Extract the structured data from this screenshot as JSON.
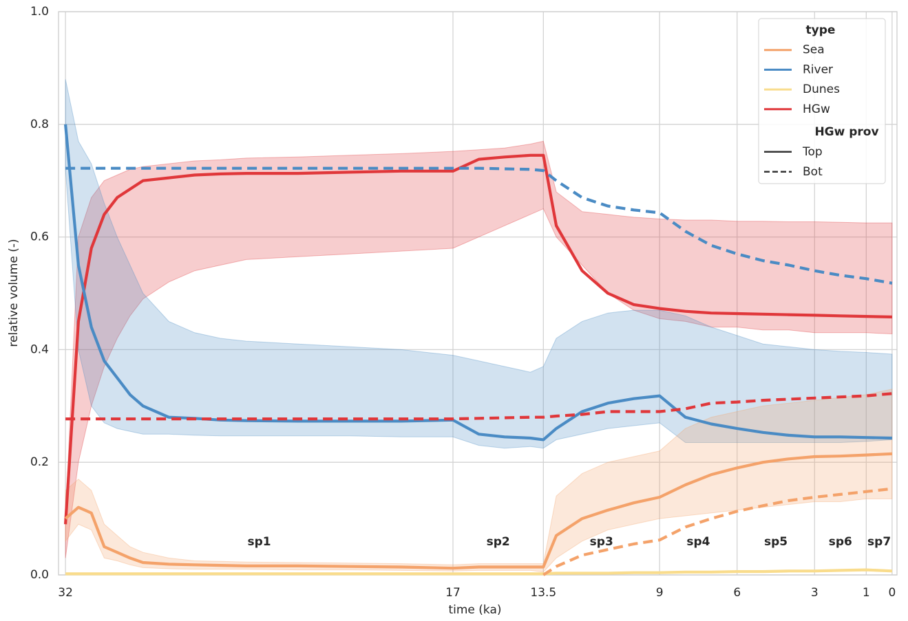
{
  "chart_data": {
    "type": "line",
    "xlabel": "time (ka)",
    "ylabel": "relative volume (-)",
    "xlim": [
      32.27,
      -0.19
    ],
    "ylim": [
      0,
      1
    ],
    "xticks": [
      32,
      17,
      13.5,
      9,
      6,
      3,
      1,
      0
    ],
    "yticks": [
      {
        "value": 0,
        "label": "0.0"
      },
      0.2,
      0.4,
      0.6,
      0.8,
      {
        "value": 1,
        "label": "1.0"
      }
    ],
    "grid": true,
    "x": [
      32,
      31.5,
      31,
      30.5,
      30,
      29.5,
      29,
      28,
      27,
      26,
      25,
      23,
      21,
      19,
      17,
      16,
      15,
      14,
      13.5,
      13,
      12,
      11,
      10,
      9,
      8,
      7,
      6,
      5,
      4,
      3,
      2,
      1,
      0
    ],
    "series": [
      {
        "type": "HGw",
        "prov": "Top",
        "color": "#e0373a",
        "values": [
          0.09,
          0.45,
          0.58,
          0.64,
          0.67,
          0.685,
          0.7,
          0.705,
          0.71,
          0.712,
          0.713,
          0.713,
          0.715,
          0.717,
          0.717,
          0.738,
          0.742,
          0.745,
          0.745,
          0.62,
          0.54,
          0.5,
          0.48,
          0.473,
          0.468,
          0.465,
          0.464,
          0.463,
          0.462,
          0.461,
          0.46,
          0.459,
          0.458
        ],
        "band_lower": [
          0.03,
          0.2,
          0.3,
          0.37,
          0.42,
          0.46,
          0.49,
          0.52,
          0.54,
          0.55,
          0.56,
          0.565,
          0.57,
          0.575,
          0.58,
          0.6,
          0.62,
          0.64,
          0.65,
          0.6,
          0.55,
          0.5,
          0.47,
          0.455,
          0.45,
          0.44,
          0.44,
          0.435,
          0.435,
          0.43,
          0.43,
          0.43,
          0.428
        ],
        "band_upper": [
          0.1,
          0.6,
          0.67,
          0.7,
          0.71,
          0.72,
          0.725,
          0.73,
          0.735,
          0.737,
          0.74,
          0.742,
          0.745,
          0.748,
          0.752,
          0.755,
          0.758,
          0.765,
          0.77,
          0.68,
          0.645,
          0.64,
          0.635,
          0.632,
          0.63,
          0.63,
          0.628,
          0.628,
          0.627,
          0.627,
          0.626,
          0.625,
          0.625
        ]
      },
      {
        "type": "River",
        "prov": "Top",
        "color": "#4a8bc4",
        "values": [
          0.8,
          0.55,
          0.44,
          0.38,
          0.35,
          0.32,
          0.3,
          0.28,
          0.278,
          0.275,
          0.274,
          0.273,
          0.273,
          0.273,
          0.275,
          0.25,
          0.245,
          0.243,
          0.24,
          0.26,
          0.29,
          0.305,
          0.313,
          0.318,
          0.28,
          0.268,
          0.26,
          0.253,
          0.248,
          0.245,
          0.245,
          0.244,
          0.243
        ],
        "band_lower": [
          0.72,
          0.4,
          0.3,
          0.27,
          0.26,
          0.255,
          0.25,
          0.25,
          0.248,
          0.247,
          0.247,
          0.247,
          0.247,
          0.245,
          0.245,
          0.23,
          0.225,
          0.228,
          0.225,
          0.24,
          0.25,
          0.26,
          0.265,
          0.27,
          0.235,
          0.235,
          0.235,
          0.235,
          0.235,
          0.235,
          0.235,
          0.237,
          0.24
        ],
        "band_upper": [
          0.88,
          0.77,
          0.73,
          0.66,
          0.6,
          0.55,
          0.5,
          0.45,
          0.43,
          0.42,
          0.415,
          0.41,
          0.405,
          0.4,
          0.39,
          0.38,
          0.37,
          0.36,
          0.37,
          0.42,
          0.45,
          0.465,
          0.47,
          0.47,
          0.46,
          0.44,
          0.425,
          0.41,
          0.405,
          0.4,
          0.397,
          0.395,
          0.392
        ]
      },
      {
        "type": "Sea",
        "prov": "Top",
        "color": "#f4a26a",
        "values": [
          0.1,
          0.12,
          0.11,
          0.05,
          0.04,
          0.03,
          0.022,
          0.019,
          0.018,
          0.017,
          0.016,
          0.016,
          0.015,
          0.014,
          0.012,
          0.014,
          0.014,
          0.014,
          0.014,
          0.07,
          0.1,
          0.115,
          0.128,
          0.138,
          0.16,
          0.178,
          0.19,
          0.2,
          0.206,
          0.21,
          0.211,
          0.213,
          0.215
        ],
        "band_lower": [
          0.06,
          0.09,
          0.08,
          0.03,
          0.025,
          0.018,
          0.013,
          0.011,
          0.01,
          0.01,
          0.01,
          0.009,
          0.009,
          0.008,
          0.007,
          0.008,
          0.008,
          0.008,
          0.005,
          0.03,
          0.06,
          0.08,
          0.09,
          0.1,
          0.105,
          0.11,
          0.115,
          0.12,
          0.125,
          0.13,
          0.13,
          0.135,
          0.135
        ],
        "band_upper": [
          0.15,
          0.17,
          0.15,
          0.09,
          0.07,
          0.05,
          0.04,
          0.03,
          0.025,
          0.024,
          0.023,
          0.022,
          0.021,
          0.02,
          0.018,
          0.02,
          0.02,
          0.02,
          0.02,
          0.14,
          0.18,
          0.2,
          0.21,
          0.22,
          0.26,
          0.28,
          0.29,
          0.3,
          0.305,
          0.31,
          0.315,
          0.32,
          0.33
        ]
      },
      {
        "type": "Dunes",
        "prov": "Top",
        "color": "#f9dc8c",
        "values": [
          0.002,
          0.002,
          0.002,
          0.002,
          0.002,
          0.002,
          0.002,
          0.002,
          0.002,
          0.002,
          0.002,
          0.002,
          0.002,
          0.002,
          0.002,
          0.002,
          0.002,
          0.002,
          0.002,
          0.003,
          0.003,
          0.003,
          0.004,
          0.004,
          0.005,
          0.005,
          0.006,
          0.006,
          0.007,
          0.007,
          0.008,
          0.009,
          0.007
        ]
      },
      {
        "type": "HGw",
        "prov": "Bot",
        "color": "#e0373a",
        "values": [
          0.277,
          0.277,
          0.277,
          0.277,
          0.277,
          0.277,
          0.277,
          0.277,
          0.277,
          0.277,
          0.277,
          0.277,
          0.277,
          0.277,
          0.277,
          0.278,
          0.279,
          0.28,
          0.28,
          0.282,
          0.285,
          0.29,
          0.29,
          0.29,
          0.295,
          0.305,
          0.307,
          0.31,
          0.312,
          0.314,
          0.316,
          0.318,
          0.322
        ]
      },
      {
        "type": "River",
        "prov": "Bot",
        "color": "#4a8bc4",
        "values": [
          0.722,
          0.722,
          0.722,
          0.722,
          0.722,
          0.722,
          0.722,
          0.722,
          0.722,
          0.722,
          0.722,
          0.722,
          0.722,
          0.722,
          0.722,
          0.722,
          0.721,
          0.72,
          0.718,
          0.7,
          0.67,
          0.655,
          0.648,
          0.643,
          0.61,
          0.585,
          0.57,
          0.558,
          0.55,
          0.54,
          0.532,
          0.526,
          0.518
        ]
      },
      {
        "type": "Sea",
        "prov": "Bot",
        "color": "#f4a26a",
        "values": [
          null,
          null,
          null,
          null,
          null,
          null,
          null,
          null,
          null,
          null,
          null,
          null,
          null,
          null,
          null,
          null,
          null,
          null,
          0,
          0.015,
          0.035,
          0.045,
          0.055,
          0.062,
          0.085,
          0.1,
          0.113,
          0.123,
          0.132,
          0.138,
          0.143,
          0.148,
          0.153
        ]
      }
    ],
    "annotations": [
      "sp1",
      "sp2",
      "sp3",
      "sp4",
      "sp5",
      "sp6",
      "sp7"
    ],
    "legend": {
      "loc": "upper right",
      "title": "type",
      "items": [
        "Sea",
        "River",
        "Dunes",
        "HGw"
      ],
      "prov_title": "HGw prov",
      "prov_items": [
        "Top",
        "Bot"
      ]
    }
  }
}
